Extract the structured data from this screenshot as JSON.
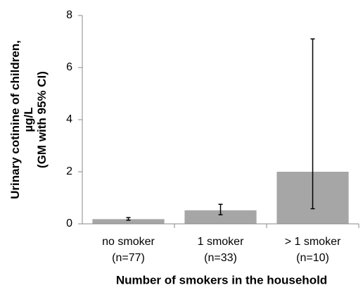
{
  "chart_data": {
    "type": "bar",
    "categories": [
      [
        "no smoker",
        "(n=77)"
      ],
      [
        "1 smoker",
        "(n=33)"
      ],
      [
        "> 1 smoker",
        "(n=10)"
      ]
    ],
    "values": [
      0.18,
      0.52,
      2.0
    ],
    "ci_low": [
      0.14,
      0.35,
      0.58
    ],
    "ci_high": [
      0.24,
      0.75,
      7.1
    ],
    "color": "#a6a6a6",
    "ylim": [
      0,
      8
    ],
    "yticks": [
      0,
      2,
      4,
      6,
      8
    ],
    "ylabel": [
      "Urinary cotinine of children,",
      "µg/L",
      "(GM with 95% CI)"
    ],
    "xlabel": "Number of smokers in the household"
  }
}
